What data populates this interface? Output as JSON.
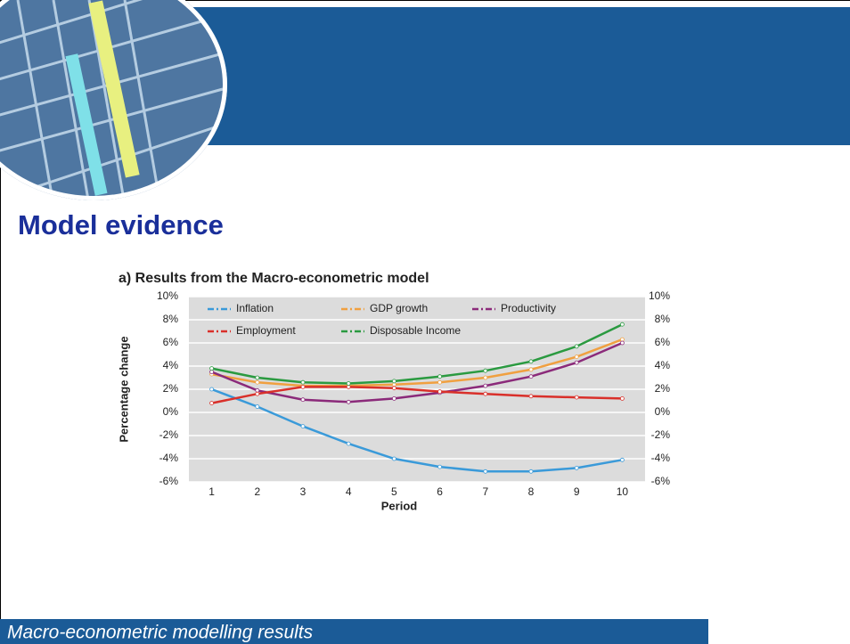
{
  "slide": {
    "title": "Model evidence",
    "footer": "Macro-econometric modelling results"
  },
  "chart_data": {
    "type": "line",
    "title": "a) Results from the Macro-econometric model",
    "x_label": "Period",
    "y_label": "Percentage change",
    "categories": [
      "1",
      "2",
      "3",
      "4",
      "5",
      "6",
      "7",
      "8",
      "9",
      "10"
    ],
    "series": [
      {
        "name": "Inflation",
        "color": "#3a9ad9",
        "values": [
          2.0,
          0.5,
          -1.2,
          -2.7,
          -4.0,
          -4.7,
          -5.1,
          -5.1,
          -4.8,
          -4.1
        ]
      },
      {
        "name": "GDP growth",
        "color": "#f0a040",
        "values": [
          3.3,
          2.6,
          2.3,
          2.3,
          2.4,
          2.6,
          3.0,
          3.7,
          4.8,
          6.3
        ]
      },
      {
        "name": "Productivity",
        "color": "#8b2a7a",
        "values": [
          3.5,
          1.9,
          1.1,
          0.9,
          1.2,
          1.7,
          2.3,
          3.1,
          4.3,
          6.0
        ]
      },
      {
        "name": "Employment",
        "color": "#d9302a",
        "values": [
          0.8,
          1.6,
          2.2,
          2.2,
          2.1,
          1.8,
          1.6,
          1.4,
          1.3,
          1.2
        ]
      },
      {
        "name": "Disposable Income",
        "color": "#2a9a40",
        "values": [
          3.8,
          3.0,
          2.6,
          2.5,
          2.7,
          3.1,
          3.6,
          4.4,
          5.7,
          7.6
        ]
      }
    ],
    "ylim": [
      -6,
      10
    ],
    "yticks": [
      {
        "value": -6,
        "label": "-6%"
      },
      {
        "value": -4,
        "label": "-4%"
      },
      {
        "value": -2,
        "label": "-2%"
      },
      {
        "value": 0,
        "label": "0%"
      },
      {
        "value": 2,
        "label": "2%"
      },
      {
        "value": 4,
        "label": "4%"
      },
      {
        "value": 6,
        "label": "6%"
      },
      {
        "value": 8,
        "label": "8%"
      },
      {
        "value": 10,
        "label": "10%"
      }
    ],
    "y2lim": [
      -6,
      10
    ],
    "y2ticks": [
      {
        "value": -6,
        "label": "-6%"
      },
      {
        "value": -4,
        "label": "-4%"
      },
      {
        "value": -2,
        "label": "-2%"
      },
      {
        "value": 0,
        "label": "0%"
      },
      {
        "value": 2,
        "label": "2%"
      },
      {
        "value": 4,
        "label": "4%"
      },
      {
        "value": 6,
        "label": "6%"
      },
      {
        "value": 8,
        "label": "8%"
      },
      {
        "value": 10,
        "label": "10%"
      }
    ],
    "grid": true,
    "legend": "top"
  }
}
